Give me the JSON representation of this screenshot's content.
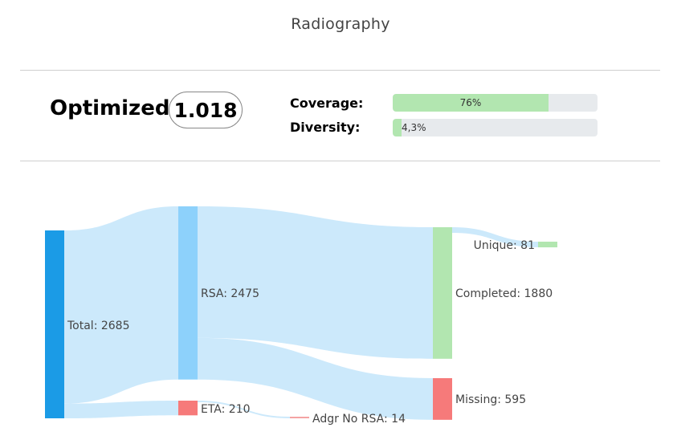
{
  "page": {
    "title": "Radiography"
  },
  "summary": {
    "optimized_label": "Optimized",
    "score": "1.018",
    "coverage": {
      "label": "Coverage:",
      "value_text": "76%",
      "value": 0.76,
      "color": "#b2e6b0"
    },
    "diversity": {
      "label": "Diversity:",
      "value_text": "4,3%",
      "value": 0.043,
      "color": "#b2e6b0"
    }
  },
  "sankey": {
    "link_color": "#cce9fb",
    "nodes": [
      {
        "id": "total",
        "label": "Total: 2685",
        "color": "#1b9be6"
      },
      {
        "id": "rsa",
        "label": "RSA: 2475",
        "color": "#8dd1fb"
      },
      {
        "id": "eta",
        "label": "ETA: 210",
        "color": "#f67a7a"
      },
      {
        "id": "adgr",
        "label": "Adgr No RSA: 14",
        "color": "#f4a3a3"
      },
      {
        "id": "completed",
        "label": "Completed: 1880",
        "color": "#b2e6b0"
      },
      {
        "id": "missing",
        "label": "Missing: 595",
        "color": "#f67a7a"
      },
      {
        "id": "unique",
        "label": "Unique: 81",
        "color": "#b2e6b0"
      }
    ],
    "links": [
      {
        "source": "total",
        "target": "rsa",
        "value": 2475
      },
      {
        "source": "total",
        "target": "eta",
        "value": 210
      },
      {
        "source": "rsa",
        "target": "completed",
        "value": 1880
      },
      {
        "source": "rsa",
        "target": "missing",
        "value": 595
      },
      {
        "source": "eta",
        "target": "adgr",
        "value": 14
      },
      {
        "source": "completed",
        "target": "unique",
        "value": 81
      }
    ]
  }
}
